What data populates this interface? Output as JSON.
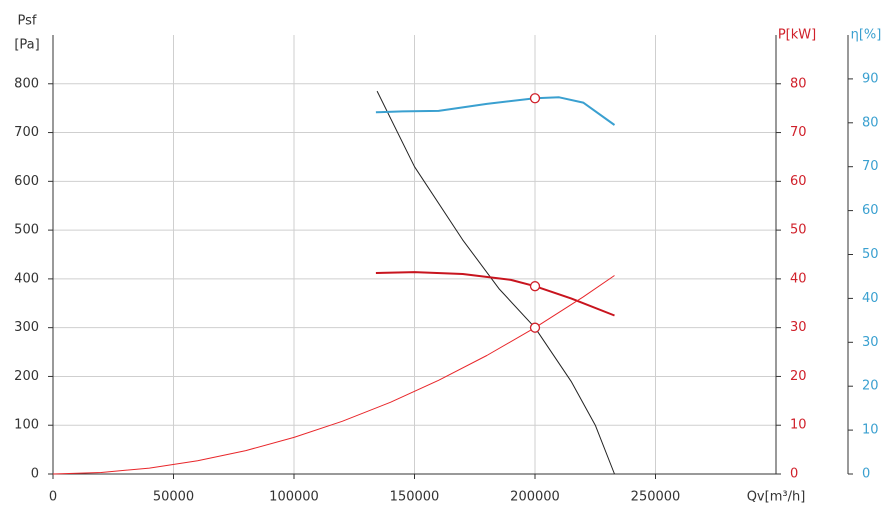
{
  "chart_data": {
    "type": "line",
    "ylabel_top": "Psf",
    "ylabel": "[Pa]",
    "y2label": "P[kW]",
    "y3label": "η[%]",
    "xlabel": "Qv[m³/h]",
    "xlim": [
      0,
      300000
    ],
    "xticks": [
      0,
      50000,
      100000,
      150000,
      200000,
      250000
    ],
    "ylim": [
      0,
      900
    ],
    "yticks": [
      0,
      100,
      200,
      300,
      400,
      500,
      600,
      700,
      800
    ],
    "y2lim": [
      0,
      90
    ],
    "y2ticks": [
      0,
      10,
      20,
      30,
      40,
      50,
      60,
      70,
      80
    ],
    "y3lim": [
      0,
      100
    ],
    "y3ticks": [
      0,
      10,
      20,
      30,
      40,
      50,
      60,
      70,
      80,
      90
    ],
    "y2color": "#d0202a",
    "y3color": "#3aa0d0",
    "grid": true,
    "series": [
      {
        "color": "#222222",
        "axis": "y",
        "width": 1,
        "x": [
          134500,
          150000,
          170000,
          185000,
          200000,
          215000,
          225000,
          233000
        ],
        "values": [
          785,
          630,
          480,
          380,
          300,
          190,
          100,
          0
        ]
      },
      {
        "color": "#c8141e",
        "axis": "y2",
        "width": 2,
        "x": [
          134000,
          150000,
          170000,
          190000,
          200000,
          215000,
          233000
        ],
        "values": [
          41.2,
          41.4,
          41,
          39.8,
          38.5,
          36,
          32.5
        ]
      },
      {
        "color": "#3aa0d0",
        "axis": "y3",
        "width": 2,
        "x": [
          134000,
          145000,
          160000,
          180000,
          200000,
          210000,
          220000,
          233000
        ],
        "values": [
          82.4,
          82.6,
          82.7,
          84.3,
          85.6,
          85.8,
          84.6,
          79.5
        ]
      },
      {
        "color": "#e8262a",
        "axis": "y",
        "width": 1,
        "x": [
          0,
          20000,
          40000,
          60000,
          80000,
          100000,
          120000,
          140000,
          160000,
          180000,
          200000,
          220000,
          233000
        ],
        "values": [
          0,
          3,
          12,
          27,
          48,
          75,
          108,
          147,
          192,
          243,
          300,
          363,
          407
        ]
      }
    ],
    "points": [
      {
        "x": 200000,
        "y": 300,
        "axis": "y",
        "color": "#d0202a"
      },
      {
        "x": 200000,
        "y": 38.5,
        "axis": "y2",
        "color": "#d0202a"
      },
      {
        "x": 200000,
        "y": 85.6,
        "axis": "y3",
        "color": "#d0202a"
      }
    ]
  }
}
